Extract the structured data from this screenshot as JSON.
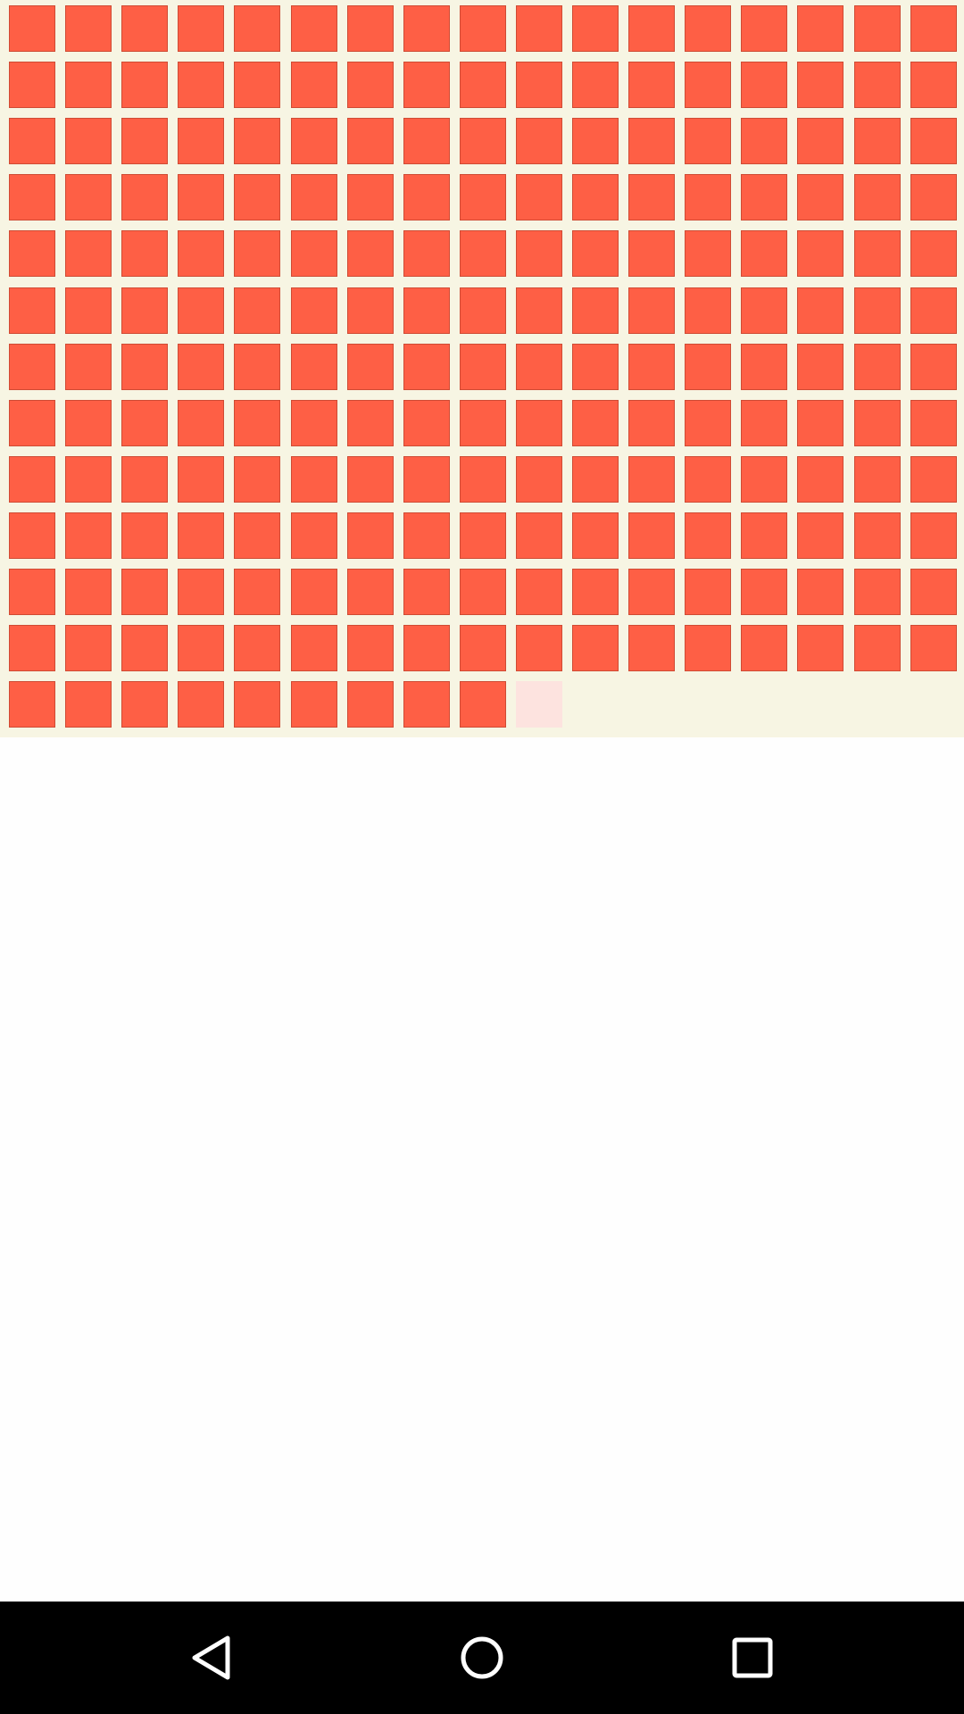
{
  "grid": {
    "total_tiles": 213,
    "columns": 17,
    "tile_color": "#fe5f45",
    "gap_color": "#f7f5e3",
    "pending_tile_color": "#fde3df",
    "pending_tiles": 1
  },
  "navigation": {
    "background": "#000000",
    "icon_color": "#ffffff",
    "back_icon": "back-triangle-icon",
    "home_icon": "home-circle-icon",
    "recents_icon": "recents-square-icon"
  }
}
